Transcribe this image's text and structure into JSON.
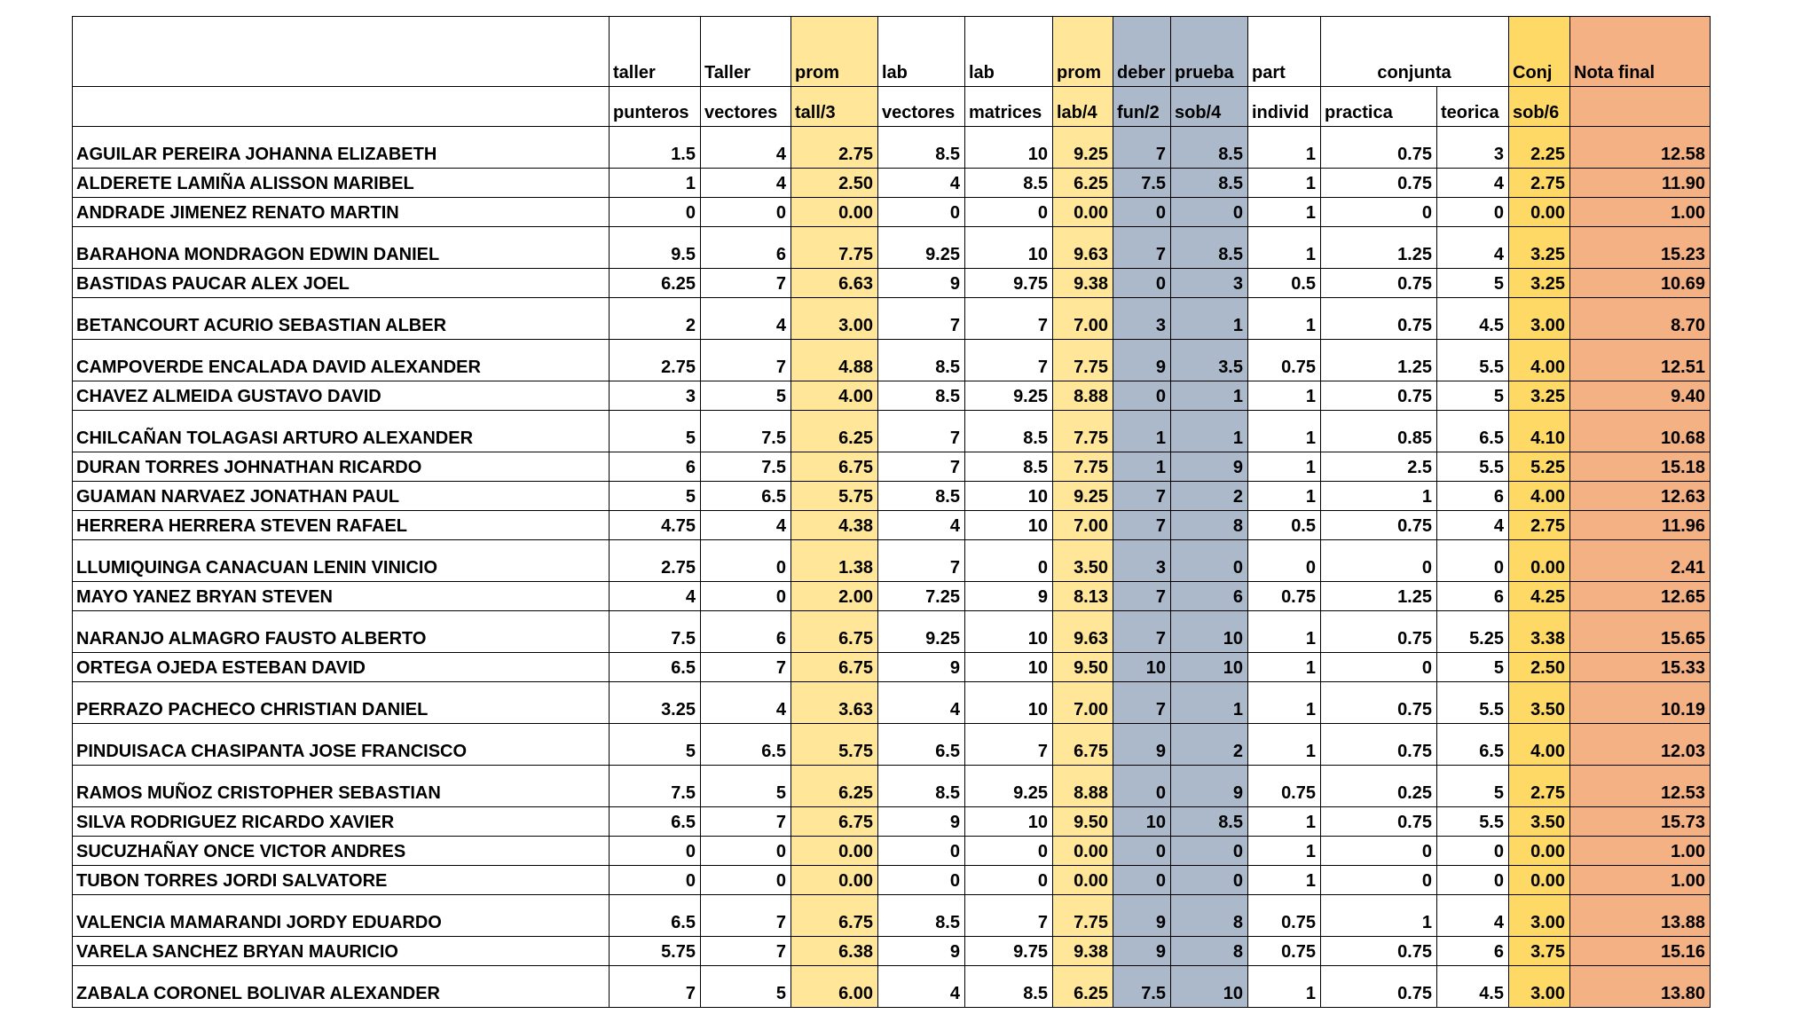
{
  "colors": {
    "yellow": "#FFE699",
    "blue": "#ACB9CA",
    "gold": "#FFD966",
    "orange": "#F4B183",
    "grid_line": "#000000",
    "text": "#000000",
    "background": "#FFFFFF"
  },
  "table": {
    "header_row1": [
      {
        "label": ""
      },
      {
        "label": "taller"
      },
      {
        "label": "Taller"
      },
      {
        "label": "prom",
        "bg": "yellow"
      },
      {
        "label": "lab"
      },
      {
        "label": "lab"
      },
      {
        "label": "prom",
        "bg": "yellow"
      },
      {
        "label": "deber",
        "bg": "blue"
      },
      {
        "label": "prueba",
        "bg": "blue"
      },
      {
        "label": "part"
      },
      {
        "label": "conjunta",
        "colspan": 2,
        "align": "center"
      },
      {
        "label": "Conj",
        "bg": "gold"
      },
      {
        "label": "Nota final",
        "bg": "orange"
      }
    ],
    "header_row2": [
      {
        "label": ""
      },
      {
        "label": "punteros"
      },
      {
        "label": "vectores"
      },
      {
        "label": "tall/3",
        "bg": "yellow"
      },
      {
        "label": "vectores"
      },
      {
        "label": "matrices"
      },
      {
        "label": "lab/4",
        "bg": "yellow"
      },
      {
        "label": "fun/2",
        "bg": "blue"
      },
      {
        "label": "sob/4",
        "bg": "blue"
      },
      {
        "label": "individ"
      },
      {
        "label": "practica"
      },
      {
        "label": "teorica"
      },
      {
        "label": "sob/6",
        "bg": "gold"
      },
      {
        "label": "",
        "bg": "orange"
      }
    ],
    "col_bgs": [
      "",
      "",
      "",
      "yellow",
      "",
      "",
      "yellow",
      "blue",
      "blue",
      "",
      "",
      "",
      "gold",
      "orange"
    ],
    "rows": [
      {
        "name": "AGUILAR PEREIRA JOHANNA ELIZABETH",
        "tall": true,
        "values": [
          "1.5",
          "4",
          "2.75",
          "8.5",
          "10",
          "9.25",
          "7",
          "8.5",
          "1",
          "0.75",
          "3",
          "2.25",
          "12.58"
        ]
      },
      {
        "name": "ALDERETE LAMIÑA ALISSON MARIBEL",
        "tall": false,
        "values": [
          "1",
          "4",
          "2.50",
          "4",
          "8.5",
          "6.25",
          "7.5",
          "8.5",
          "1",
          "0.75",
          "4",
          "2.75",
          "11.90"
        ]
      },
      {
        "name": "ANDRADE JIMENEZ RENATO MARTIN",
        "tall": false,
        "values": [
          "0",
          "0",
          "0.00",
          "0",
          "0",
          "0.00",
          "0",
          "0",
          "1",
          "0",
          "0",
          "0.00",
          "1.00"
        ]
      },
      {
        "name": "BARAHONA MONDRAGON EDWIN DANIEL",
        "tall": true,
        "values": [
          "9.5",
          "6",
          "7.75",
          "9.25",
          "10",
          "9.63",
          "7",
          "8.5",
          "1",
          "1.25",
          "4",
          "3.25",
          "15.23"
        ]
      },
      {
        "name": "BASTIDAS PAUCAR ALEX JOEL",
        "tall": false,
        "values": [
          "6.25",
          "7",
          "6.63",
          "9",
          "9.75",
          "9.38",
          "0",
          "3",
          "0.5",
          "0.75",
          "5",
          "3.25",
          "10.69"
        ]
      },
      {
        "name": "BETANCOURT ACURIO SEBASTIAN ALBER",
        "tall": true,
        "values": [
          "2",
          "4",
          "3.00",
          "7",
          "7",
          "7.00",
          "3",
          "1",
          "1",
          "0.75",
          "4.5",
          "3.00",
          "8.70"
        ]
      },
      {
        "name": "CAMPOVERDE ENCALADA DAVID ALEXANDER",
        "tall": true,
        "values": [
          "2.75",
          "7",
          "4.88",
          "8.5",
          "7",
          "7.75",
          "9",
          "3.5",
          "0.75",
          "1.25",
          "5.5",
          "4.00",
          "12.51"
        ]
      },
      {
        "name": "CHAVEZ ALMEIDA GUSTAVO DAVID",
        "tall": false,
        "values": [
          "3",
          "5",
          "4.00",
          "8.5",
          "9.25",
          "8.88",
          "0",
          "1",
          "1",
          "0.75",
          "5",
          "3.25",
          "9.40"
        ]
      },
      {
        "name": "CHILCAÑAN TOLAGASI ARTURO ALEXANDER",
        "tall": true,
        "values": [
          "5",
          "7.5",
          "6.25",
          "7",
          "8.5",
          "7.75",
          "1",
          "1",
          "1",
          "0.85",
          "6.5",
          "4.10",
          "10.68"
        ]
      },
      {
        "name": "DURAN TORRES JOHNATHAN RICARDO",
        "tall": false,
        "values": [
          "6",
          "7.5",
          "6.75",
          "7",
          "8.5",
          "7.75",
          "1",
          "9",
          "1",
          "2.5",
          "5.5",
          "5.25",
          "15.18"
        ]
      },
      {
        "name": "GUAMAN NARVAEZ JONATHAN PAUL",
        "tall": false,
        "values": [
          "5",
          "6.5",
          "5.75",
          "8.5",
          "10",
          "9.25",
          "7",
          "2",
          "1",
          "1",
          "6",
          "4.00",
          "12.63"
        ]
      },
      {
        "name": "HERRERA HERRERA STEVEN RAFAEL",
        "tall": false,
        "values": [
          "4.75",
          "4",
          "4.38",
          "4",
          "10",
          "7.00",
          "7",
          "8",
          "0.5",
          "0.75",
          "4",
          "2.75",
          "11.96"
        ]
      },
      {
        "name": "LLUMIQUINGA CANACUAN LENIN VINICIO",
        "tall": true,
        "values": [
          "2.75",
          "0",
          "1.38",
          "7",
          "0",
          "3.50",
          "3",
          "0",
          "0",
          "0",
          "0",
          "0.00",
          "2.41"
        ]
      },
      {
        "name": "MAYO YANEZ BRYAN STEVEN",
        "tall": false,
        "values": [
          "4",
          "0",
          "2.00",
          "7.25",
          "9",
          "8.13",
          "7",
          "6",
          "0.75",
          "1.25",
          "6",
          "4.25",
          "12.65"
        ]
      },
      {
        "name": "NARANJO ALMAGRO FAUSTO ALBERTO",
        "tall": true,
        "values": [
          "7.5",
          "6",
          "6.75",
          "9.25",
          "10",
          "9.63",
          "7",
          "10",
          "1",
          "0.75",
          "5.25",
          "3.38",
          "15.65"
        ]
      },
      {
        "name": "ORTEGA OJEDA ESTEBAN DAVID",
        "tall": false,
        "values": [
          "6.5",
          "7",
          "6.75",
          "9",
          "10",
          "9.50",
          "10",
          "10",
          "1",
          "0",
          "5",
          "2.50",
          "15.33"
        ]
      },
      {
        "name": "PERRAZO PACHECO CHRISTIAN DANIEL",
        "tall": true,
        "values": [
          "3.25",
          "4",
          "3.63",
          "4",
          "10",
          "7.00",
          "7",
          "1",
          "1",
          "0.75",
          "5.5",
          "3.50",
          "10.19"
        ]
      },
      {
        "name": "PINDUISACA CHASIPANTA JOSE FRANCISCO",
        "tall": true,
        "values": [
          "5",
          "6.5",
          "5.75",
          "6.5",
          "7",
          "6.75",
          "9",
          "2",
          "1",
          "0.75",
          "6.5",
          "4.00",
          "12.03"
        ]
      },
      {
        "name": "RAMOS MUÑOZ CRISTOPHER SEBASTIAN",
        "tall": true,
        "values": [
          "7.5",
          "5",
          "6.25",
          "8.5",
          "9.25",
          "8.88",
          "0",
          "9",
          "0.75",
          "0.25",
          "5",
          "2.75",
          "12.53"
        ]
      },
      {
        "name": "SILVA RODRIGUEZ RICARDO XAVIER",
        "tall": false,
        "values": [
          "6.5",
          "7",
          "6.75",
          "9",
          "10",
          "9.50",
          "10",
          "8.5",
          "1",
          "0.75",
          "5.5",
          "3.50",
          "15.73"
        ]
      },
      {
        "name": "SUCUZHAÑAY ONCE VICTOR ANDRES",
        "tall": false,
        "values": [
          "0",
          "0",
          "0.00",
          "0",
          "0",
          "0.00",
          "0",
          "0",
          "1",
          "0",
          "0",
          "0.00",
          "1.00"
        ]
      },
      {
        "name": "TUBON TORRES JORDI SALVATORE",
        "tall": false,
        "values": [
          "0",
          "0",
          "0.00",
          "0",
          "0",
          "0.00",
          "0",
          "0",
          "1",
          "0",
          "0",
          "0.00",
          "1.00"
        ]
      },
      {
        "name": "VALENCIA MAMARANDI JORDY EDUARDO",
        "tall": true,
        "values": [
          "6.5",
          "7",
          "6.75",
          "8.5",
          "7",
          "7.75",
          "9",
          "8",
          "0.75",
          "1",
          "4",
          "3.00",
          "13.88"
        ]
      },
      {
        "name": "VARELA SANCHEZ BRYAN MAURICIO",
        "tall": false,
        "values": [
          "5.75",
          "7",
          "6.38",
          "9",
          "9.75",
          "9.38",
          "9",
          "8",
          "0.75",
          "0.75",
          "6",
          "3.75",
          "15.16"
        ]
      },
      {
        "name": "ZABALA CORONEL BOLIVAR ALEXANDER",
        "tall": true,
        "values": [
          "7",
          "5",
          "6.00",
          "4",
          "8.5",
          "6.25",
          "7.5",
          "10",
          "1",
          "0.75",
          "4.5",
          "3.00",
          "13.80"
        ]
      }
    ]
  }
}
